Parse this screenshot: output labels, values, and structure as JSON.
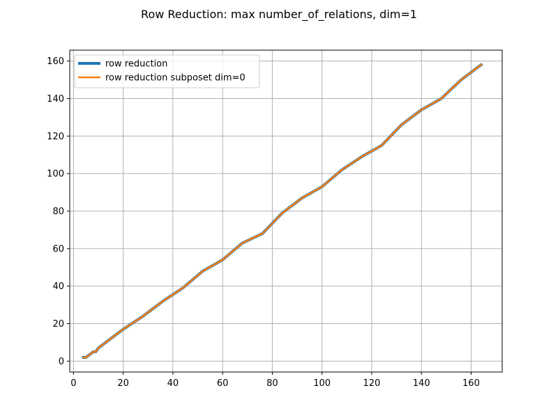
{
  "chart_data": {
    "type": "line",
    "title": "Row Reduction: max number_of_relations, dim=1",
    "xlabel": "",
    "ylabel": "",
    "xlim": [
      -1.5,
      172.5
    ],
    "ylim": [
      -5.8,
      165.8
    ],
    "xticks": [
      0,
      20,
      40,
      60,
      80,
      100,
      120,
      140,
      160
    ],
    "yticks": [
      0,
      20,
      40,
      60,
      80,
      100,
      120,
      140,
      160
    ],
    "grid": true,
    "legend_position": "top-left",
    "series": [
      {
        "name": "row reduction",
        "color": "#1f77b4",
        "x": [
          4,
          5,
          6,
          7,
          8,
          9,
          10,
          12,
          20,
          28,
          36,
          44,
          52,
          60,
          68,
          76,
          84,
          92,
          100,
          108,
          116,
          124,
          132,
          140,
          148,
          156,
          164
        ],
        "y": [
          2,
          2,
          3,
          4,
          5,
          5,
          7,
          9,
          17,
          24,
          32,
          39,
          48,
          54,
          63,
          68,
          79,
          87,
          93,
          102,
          109,
          115,
          126,
          134,
          140,
          150,
          158
        ]
      },
      {
        "name": "row reduction subposet dim=0",
        "color": "#ff7f0e",
        "x": [
          4,
          5,
          6,
          7,
          8,
          9,
          10,
          12,
          20,
          28,
          36,
          44,
          52,
          60,
          68,
          76,
          84,
          92,
          100,
          108,
          116,
          124,
          132,
          140,
          148,
          156,
          164
        ],
        "y": [
          2,
          2,
          3,
          4,
          5,
          5,
          7,
          9,
          17,
          24,
          32,
          39,
          48,
          54,
          63,
          68,
          79,
          87,
          93,
          102,
          109,
          115,
          126,
          134,
          140,
          150,
          158
        ]
      }
    ]
  }
}
